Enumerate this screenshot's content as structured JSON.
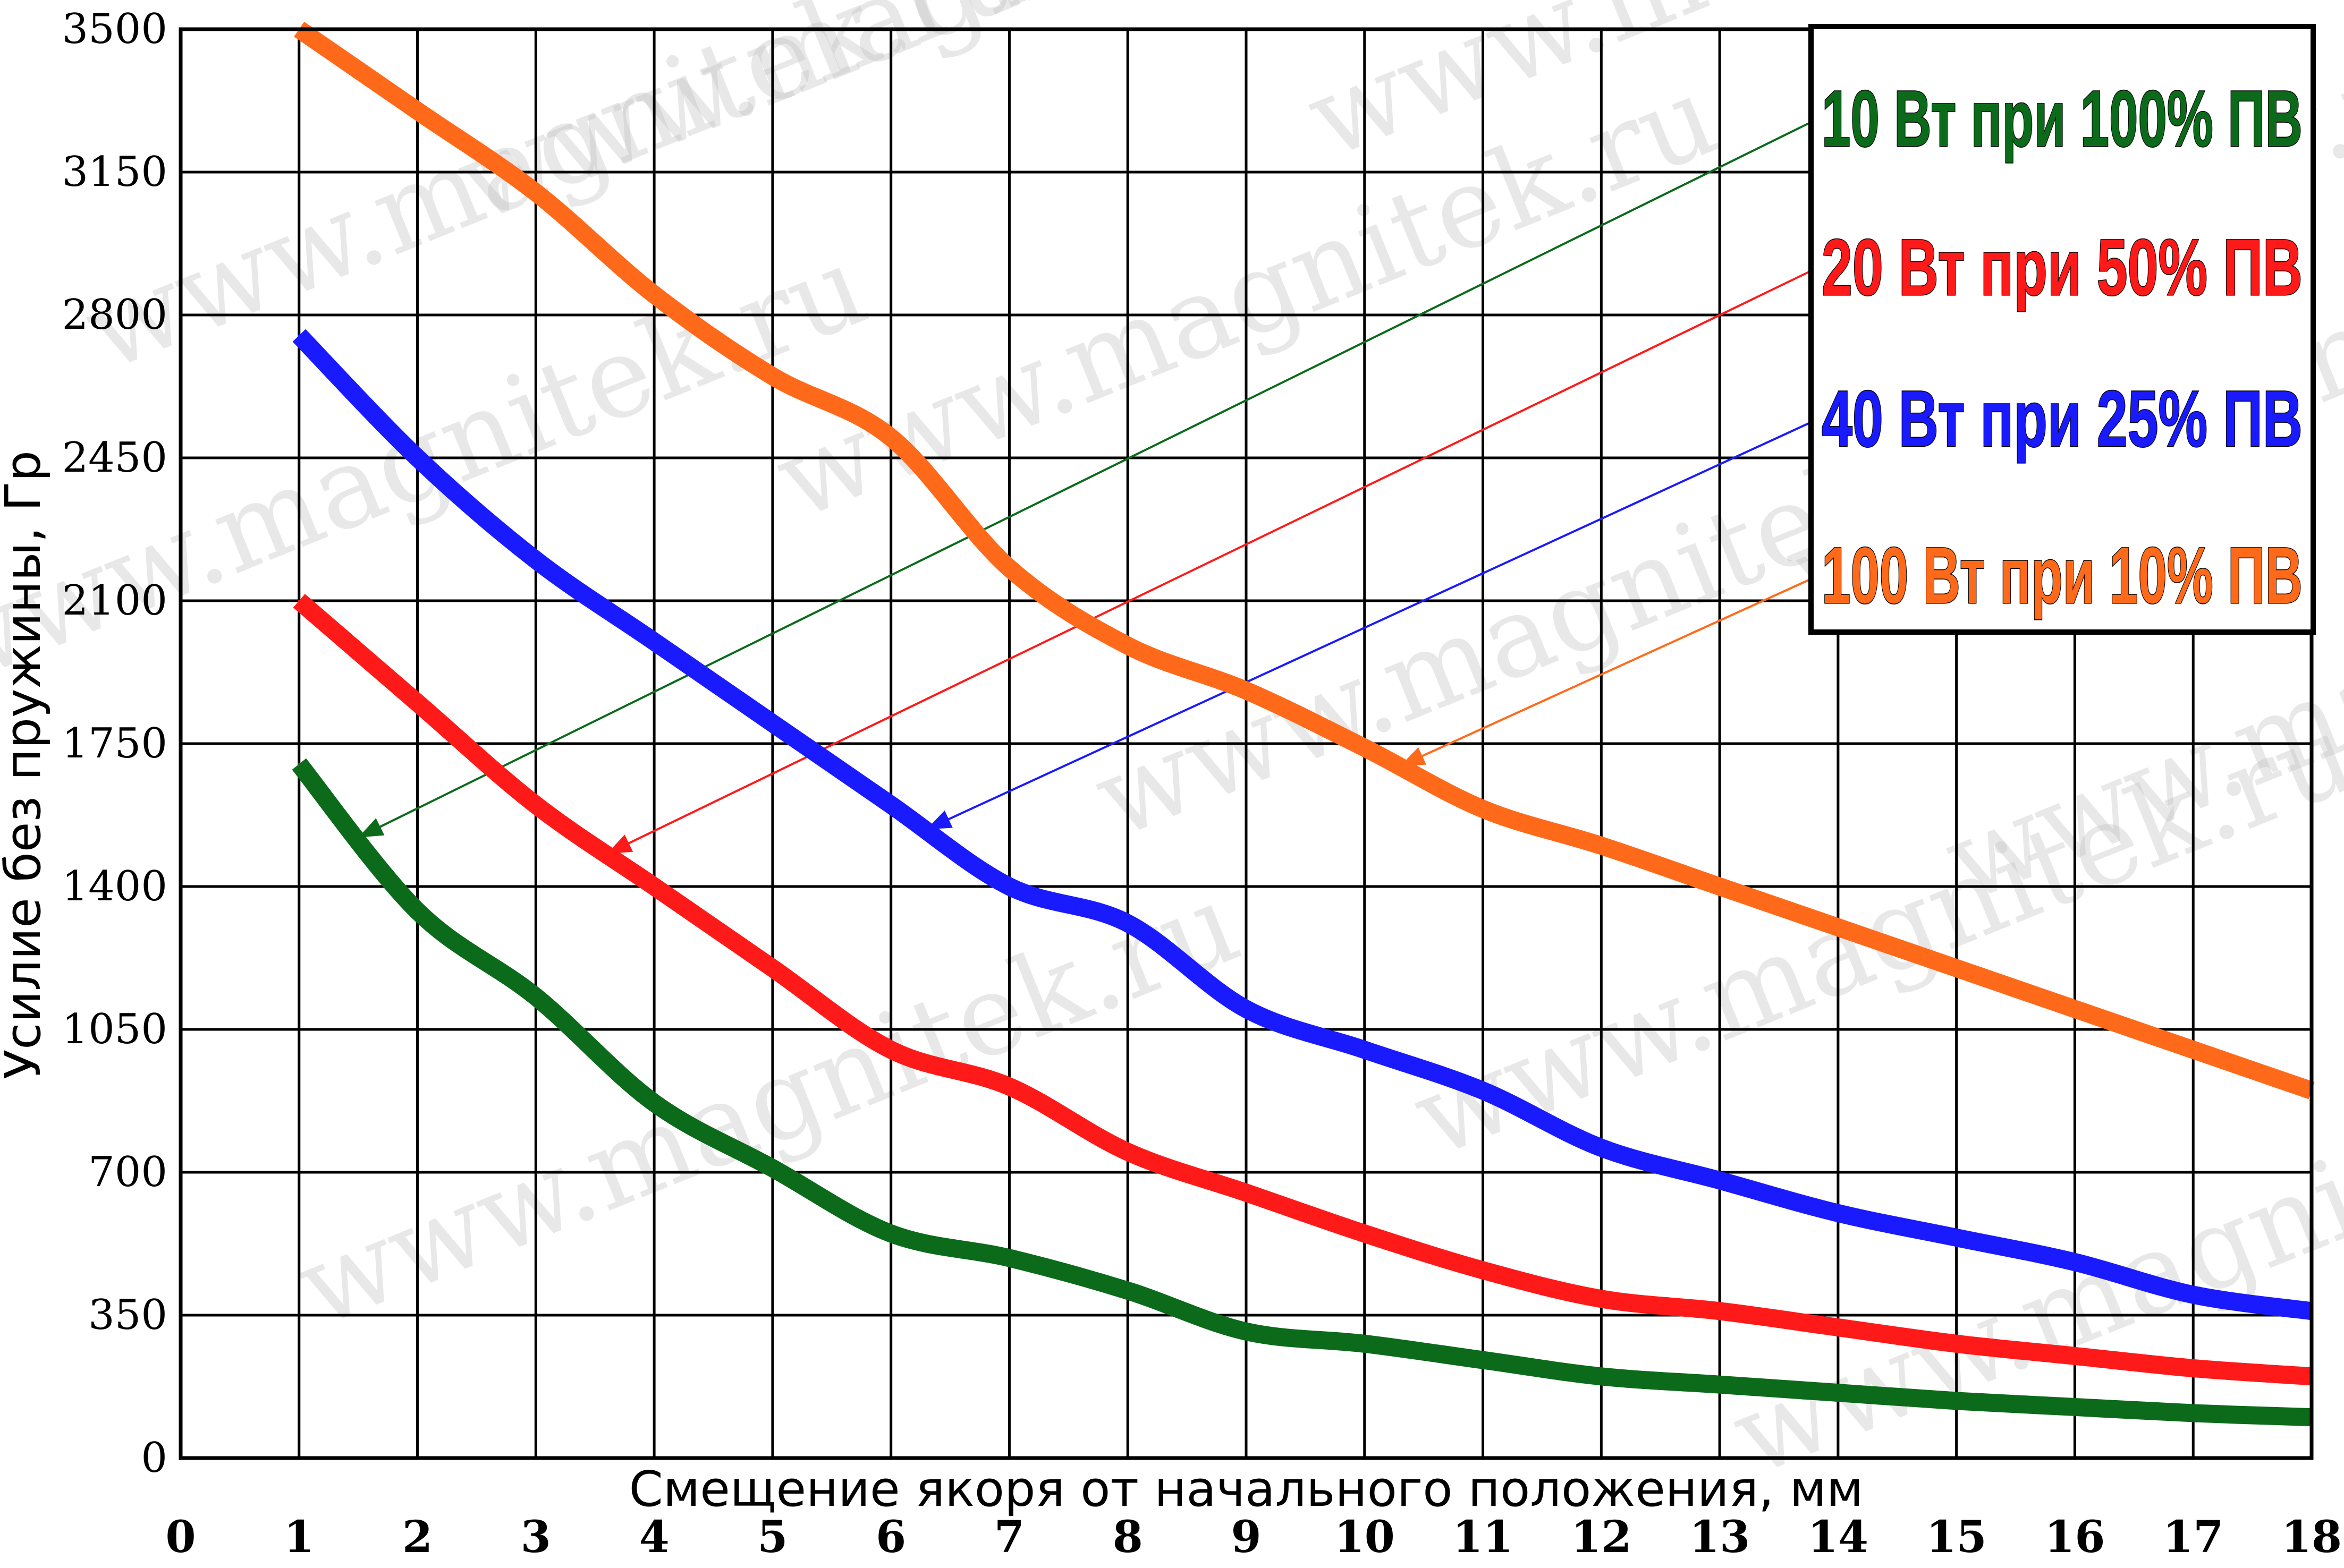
{
  "chart_data": {
    "type": "line",
    "xlabel": "Смещение якоря от начального положения, мм",
    "ylabel": "Усилие без пружины, Гр",
    "xlim": [
      0,
      18
    ],
    "ylim": [
      0,
      3500
    ],
    "x_ticks": [
      "0",
      "1",
      "2",
      "3",
      "4",
      "5",
      "6",
      "7",
      "8",
      "9",
      "10",
      "11",
      "12",
      "13",
      "14",
      "15",
      "16",
      "17",
      "18"
    ],
    "y_ticks": [
      "0",
      "350",
      "700",
      "1050",
      "1400",
      "1750",
      "2100",
      "2450",
      "2800",
      "3150",
      "3500"
    ],
    "grid": true,
    "legend_position": "top-right",
    "x": [
      1,
      2,
      3,
      4,
      5,
      6,
      7,
      8,
      9,
      10,
      11,
      12,
      13,
      14,
      15,
      16,
      17,
      18
    ],
    "series": [
      {
        "name": "10 Вт при 100% ПВ",
        "color": "#0b6b1a",
        "values": [
          1700,
          1340,
          1130,
          870,
          710,
          550,
          490,
          410,
          310,
          280,
          240,
          200,
          180,
          160,
          140,
          125,
          110,
          100
        ]
      },
      {
        "name": "20 Вт при 50% ПВ",
        "color": "#ff1a1a",
        "values": [
          2100,
          1850,
          1600,
          1400,
          1200,
          1000,
          910,
          750,
          650,
          550,
          460,
          390,
          360,
          320,
          280,
          250,
          220,
          200
        ]
      },
      {
        "name": "40 Вт при 25% ПВ",
        "color": "#1a1aff",
        "values": [
          2750,
          2450,
          2200,
          2000,
          1800,
          1600,
          1400,
          1310,
          1100,
          1000,
          900,
          760,
          680,
          600,
          540,
          480,
          400,
          360
        ]
      },
      {
        "name": "100 Вт при 10% ПВ",
        "color": "#ff6a1a",
        "values": [
          3500,
          3300,
          3100,
          2850,
          2650,
          2500,
          2180,
          1990,
          1880,
          1740,
          1590,
          1500,
          1400,
          1300,
          1200,
          1100,
          1000,
          900
        ]
      }
    ]
  },
  "watermark": {
    "text": "www.magnitek.ru",
    "color": "#bbbbbb"
  }
}
